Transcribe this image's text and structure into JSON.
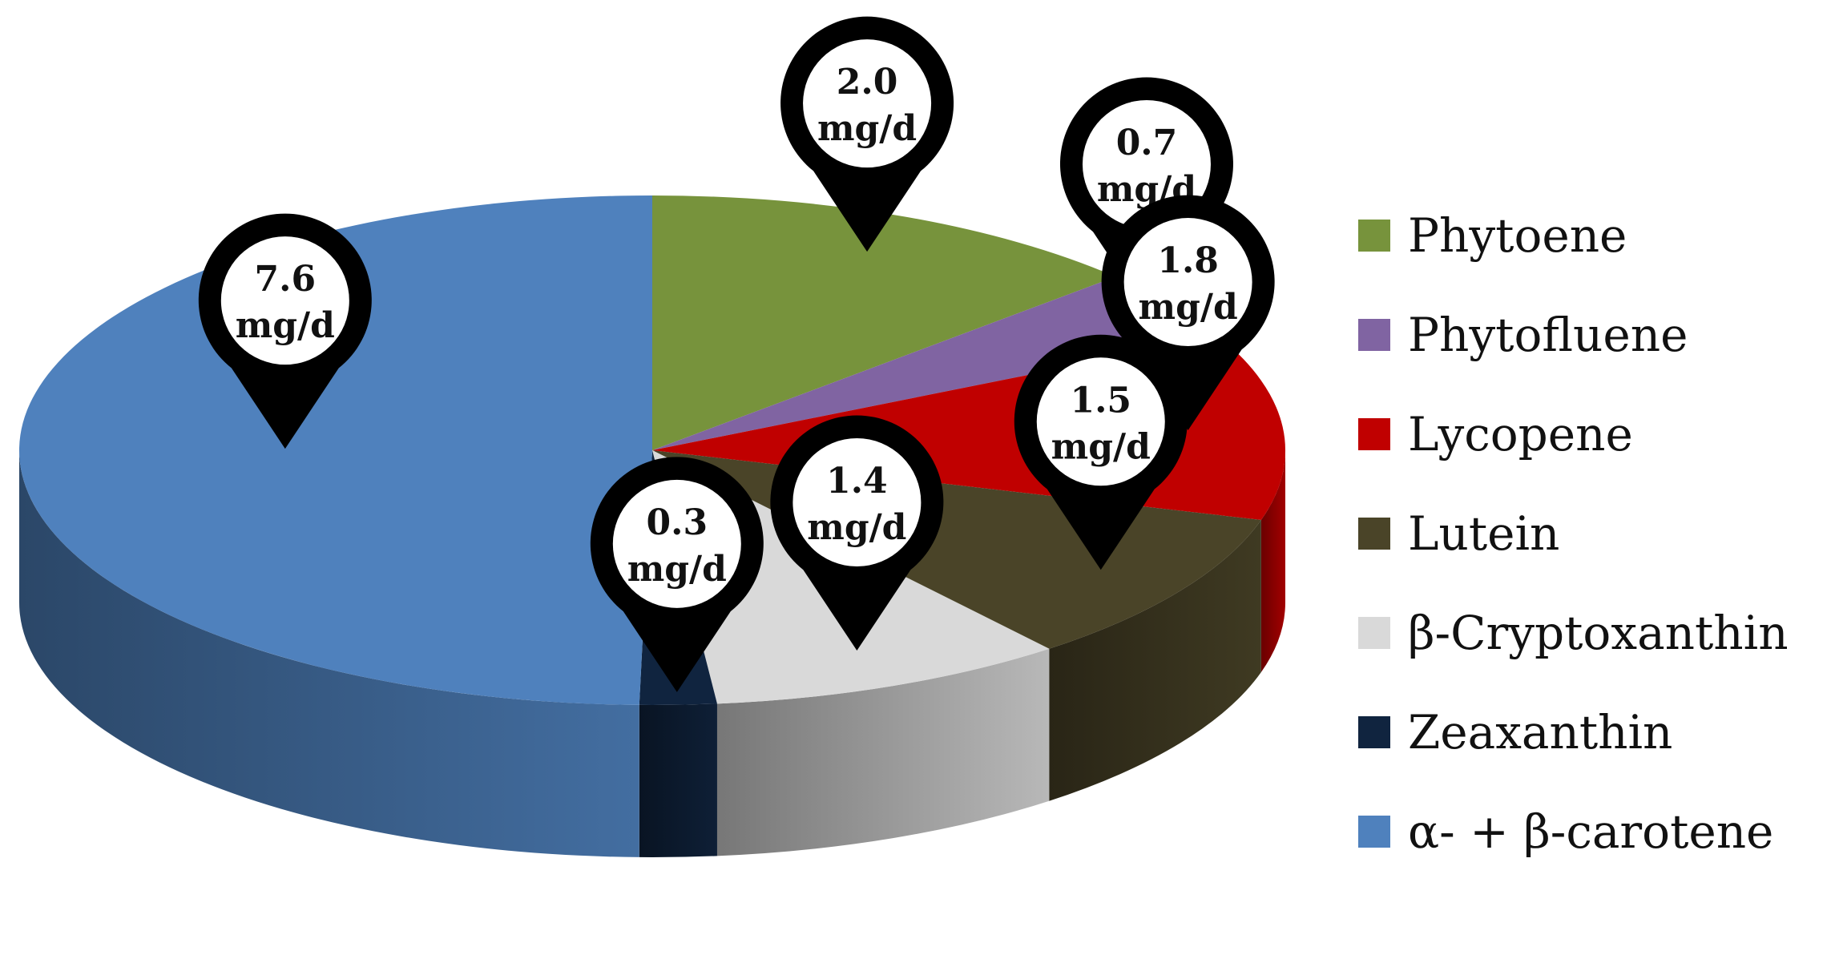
{
  "chart_data": {
    "type": "pie",
    "title": "",
    "unit": "mg/d",
    "slices": [
      {
        "name": "Phytoene",
        "value": 2.0,
        "label": "2.0",
        "color": "#77933C"
      },
      {
        "name": "Phytofluene",
        "value": 0.7,
        "label": "0.7",
        "color": "#8064A2"
      },
      {
        "name": "Lycopene",
        "value": 1.8,
        "label": "1.8",
        "color": "#C00000"
      },
      {
        "name": "Lutein",
        "value": 1.5,
        "label": "1.5",
        "color": "#4A4428"
      },
      {
        "name": "β-Cryptoxanthin",
        "value": 1.4,
        "label": "1.4",
        "color": "#D9D9D9"
      },
      {
        "name": "Zeaxanthin",
        "value": 0.3,
        "label": "0.3",
        "color": "#10243F"
      },
      {
        "name": "α- + β-carotene",
        "value": 7.6,
        "label": "7.6",
        "color": "#4F81BD"
      }
    ],
    "legend_position": "right",
    "style": "3d-pie-with-pin-markers"
  }
}
